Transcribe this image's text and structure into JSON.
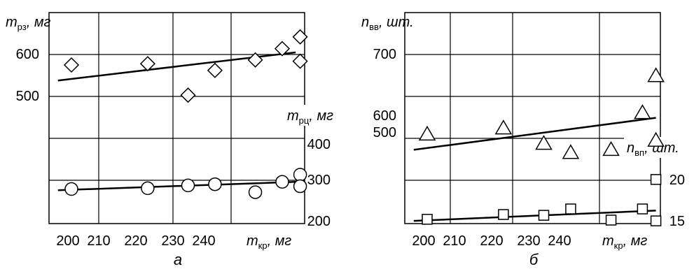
{
  "chart_data": [
    {
      "type": "scatter",
      "caption": "а",
      "x_label": {
        "sym": "m",
        "sub": "кр",
        "unit": ", мг"
      },
      "xlim": [
        200,
        257
      ],
      "x_ticks": [
        "200",
        "210",
        "220",
        "230",
        "240"
      ],
      "grid": true,
      "upper_axis": {
        "label": {
          "sym": "m",
          "sub": "рз",
          "unit": ", мг"
        },
        "ticks": [
          "600",
          "500"
        ],
        "ylim": [
          400,
          700
        ]
      },
      "lower_axis": {
        "label": {
          "sym": "m",
          "sub": "рц",
          "unit": ", мг"
        },
        "ticks": [
          "400",
          "300",
          "200"
        ],
        "ylim": [
          200,
          430
        ]
      },
      "series": [
        {
          "marker": "diamond",
          "axis": "upper",
          "x": [
            205,
            222,
            231,
            237,
            246,
            252,
            256,
            256
          ],
          "y": [
            575,
            578,
            503,
            562,
            587,
            614,
            642,
            584
          ],
          "trend": [
            [
              202,
              538
            ],
            [
              255,
              605
            ]
          ]
        },
        {
          "marker": "circle",
          "axis": "lower",
          "x": [
            205,
            222,
            231,
            237,
            246,
            252,
            256,
            256
          ],
          "y": [
            278,
            280,
            287,
            290,
            270,
            296,
            314,
            285
          ],
          "trend": [
            [
              202,
              275
            ],
            [
              255,
              296
            ]
          ]
        }
      ]
    },
    {
      "type": "scatter",
      "caption": "б",
      "x_label": {
        "sym": "m",
        "sub": "кр",
        "unit": ", мг"
      },
      "xlim": [
        200,
        257
      ],
      "x_ticks": [
        "200",
        "210",
        "220",
        "230",
        "240"
      ],
      "grid": true,
      "upper_axis": {
        "label": {
          "sym": "n",
          "sub": "вв",
          "unit": ", шт."
        },
        "ticks": [
          "700",
          "600",
          "500"
        ],
        "ylim": [
          400,
          800
        ]
      },
      "lower_axis": {
        "label": {
          "sym": "n",
          "sub": "вп",
          "unit": ", шт."
        },
        "ticks": [
          "20",
          "15"
        ],
        "ylim": [
          14,
          22
        ]
      },
      "series": [
        {
          "marker": "triangle",
          "axis": "upper",
          "x": [
            205,
            222,
            231,
            237,
            246,
            253,
            256,
            256
          ],
          "y": [
            570,
            580,
            555,
            540,
            545,
            605,
            665,
            560
          ],
          "trend": [
            [
              202,
              545
            ],
            [
              256,
              597
            ]
          ]
        },
        {
          "marker": "square",
          "axis": "lower",
          "x": [
            205,
            222,
            231,
            237,
            246,
            253,
            256,
            256
          ],
          "y": [
            15.1,
            15.7,
            15.6,
            16.4,
            15.0,
            16.4,
            20.1,
            14.9
          ],
          "trend": [
            [
              202,
              14.9
            ],
            [
              256,
              16.2
            ]
          ]
        }
      ]
    }
  ]
}
